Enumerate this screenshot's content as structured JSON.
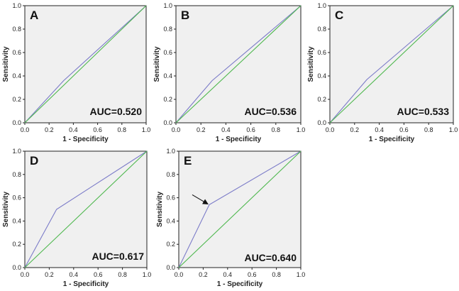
{
  "chart_data": [
    {
      "type": "line",
      "panel_label": "A",
      "xlabel": "1 - Specificity",
      "ylabel": "Sensitivity",
      "xlim": [
        0,
        1
      ],
      "ylim": [
        0,
        1
      ],
      "xticks": [
        "0.0",
        "0.2",
        "0.4",
        "0.6",
        "0.8",
        "1.0"
      ],
      "yticks": [
        "0.0",
        "0.2",
        "0.4",
        "0.6",
        "0.8",
        "1.0"
      ],
      "annotation": "AUC=0.520",
      "series": [
        {
          "name": "ROC curve",
          "color": "#7b7bc8",
          "x": [
            0,
            0.32,
            1
          ],
          "y": [
            0,
            0.36,
            1
          ]
        },
        {
          "name": "Reference line",
          "color": "#4fb84f",
          "x": [
            0,
            1
          ],
          "y": [
            0,
            1
          ]
        }
      ]
    },
    {
      "type": "line",
      "panel_label": "B",
      "xlabel": "1 - Specificity",
      "ylabel": "Sensitivity",
      "xlim": [
        0,
        1
      ],
      "ylim": [
        0,
        1
      ],
      "xticks": [
        "0.0",
        "0.2",
        "0.4",
        "0.6",
        "0.8",
        "1.0"
      ],
      "yticks": [
        "0.0",
        "0.2",
        "0.4",
        "0.6",
        "0.8",
        "1.0"
      ],
      "annotation": "AUC=0.536",
      "series": [
        {
          "name": "ROC curve",
          "color": "#7b7bc8",
          "x": [
            0,
            0.29,
            1
          ],
          "y": [
            0,
            0.36,
            1
          ]
        },
        {
          "name": "Reference line",
          "color": "#4fb84f",
          "x": [
            0,
            1
          ],
          "y": [
            0,
            1
          ]
        }
      ]
    },
    {
      "type": "line",
      "panel_label": "C",
      "xlabel": "1 - Specificity",
      "ylabel": "Sensitivity",
      "xlim": [
        0,
        1
      ],
      "ylim": [
        0,
        1
      ],
      "xticks": [
        "0.0",
        "0.2",
        "0.4",
        "0.6",
        "0.8",
        "1.0"
      ],
      "yticks": [
        "0.0",
        "0.2",
        "0.4",
        "0.6",
        "0.8",
        "1.0"
      ],
      "annotation": "AUC=0.533",
      "series": [
        {
          "name": "ROC curve",
          "color": "#7b7bc8",
          "x": [
            0,
            0.3,
            1
          ],
          "y": [
            0,
            0.37,
            1
          ]
        },
        {
          "name": "Reference line",
          "color": "#4fb84f",
          "x": [
            0,
            1
          ],
          "y": [
            0,
            1
          ]
        }
      ]
    },
    {
      "type": "line",
      "panel_label": "D",
      "xlabel": "1 - Specificity",
      "ylabel": "Sensitivity",
      "xlim": [
        0,
        1
      ],
      "ylim": [
        0,
        1
      ],
      "xticks": [
        "0.0",
        "0.2",
        "0.4",
        "0.6",
        "0.8",
        "1.0"
      ],
      "yticks": [
        "0.0",
        "0.2",
        "0.4",
        "0.6",
        "0.8",
        "1.0"
      ],
      "annotation": "AUC=0.617",
      "series": [
        {
          "name": "ROC curve",
          "color": "#7b7bc8",
          "x": [
            0,
            0.26,
            1
          ],
          "y": [
            0,
            0.5,
            1
          ]
        },
        {
          "name": "Reference line",
          "color": "#4fb84f",
          "x": [
            0,
            1
          ],
          "y": [
            0,
            1
          ]
        }
      ]
    },
    {
      "type": "line",
      "panel_label": "E",
      "xlabel": "1 - Specificity",
      "ylabel": "Sensitivity",
      "xlim": [
        0,
        1
      ],
      "ylim": [
        0,
        1
      ],
      "xticks": [
        "0.0",
        "0.2",
        "0.4",
        "0.6",
        "0.8",
        "1.0"
      ],
      "yticks": [
        "0.0",
        "0.2",
        "0.4",
        "0.6",
        "0.8",
        "1.0"
      ],
      "annotation": "AUC=0.640",
      "arrow_point": {
        "x": 0.25,
        "y": 0.54
      },
      "series": [
        {
          "name": "ROC curve",
          "color": "#7b7bc8",
          "x": [
            0,
            0.25,
            1
          ],
          "y": [
            0,
            0.54,
            1
          ]
        },
        {
          "name": "Reference line",
          "color": "#4fb84f",
          "x": [
            0,
            1
          ],
          "y": [
            0,
            1
          ]
        }
      ]
    }
  ],
  "colors": {
    "plot_background": "#f0f0f0",
    "axis": "#222222",
    "arrow": "#111111"
  }
}
